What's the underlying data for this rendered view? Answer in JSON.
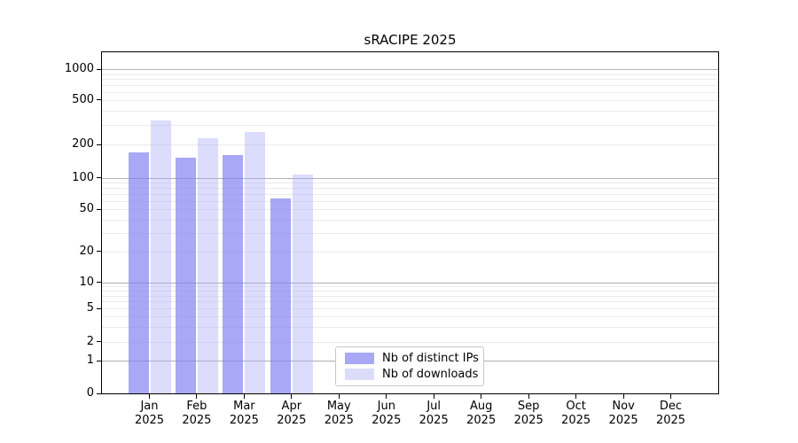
{
  "chart_data": {
    "type": "bar",
    "title": "sRACIPE 2025",
    "categories": [
      "Jan",
      "Feb",
      "Mar",
      "Apr",
      "May",
      "Jun",
      "Jul",
      "Aug",
      "Sep",
      "Oct",
      "Nov",
      "Dec"
    ],
    "category_year": "2025",
    "series": [
      {
        "name": "Nb of distinct IPs",
        "color": "#a8a8f6",
        "fill": "rgba(127,127,242,0.68)",
        "values": [
          170,
          152,
          162,
          63,
          0,
          0,
          0,
          0,
          0,
          0,
          0,
          0
        ]
      },
      {
        "name": "Nb of downloads",
        "color": "#dcdcfa",
        "fill": "rgba(170,170,250,0.41)",
        "values": [
          330,
          228,
          258,
          108,
          0,
          0,
          0,
          0,
          0,
          0,
          0,
          0
        ]
      }
    ],
    "y_axis": {
      "ticks": [
        0,
        1,
        2,
        5,
        10,
        20,
        50,
        100,
        200,
        500,
        1000
      ],
      "scale": "log-like with 0 baseline",
      "scale_anchors": [
        [
          0,
          0
        ],
        [
          1,
          0.095
        ],
        [
          2,
          0.152
        ],
        [
          5,
          0.249
        ],
        [
          10,
          0.326
        ],
        [
          20,
          0.417
        ],
        [
          50,
          0.54
        ],
        [
          100,
          0.632
        ],
        [
          200,
          0.729
        ],
        [
          500,
          0.86
        ],
        [
          1000,
          0.95
        ]
      ],
      "major_gridlines": [
        1,
        10,
        100,
        1000
      ],
      "minor_gridlines": [
        2,
        3,
        4,
        5,
        6,
        7,
        8,
        9,
        20,
        30,
        40,
        50,
        60,
        70,
        80,
        90,
        200,
        300,
        400,
        500,
        600,
        700,
        800,
        900
      ]
    },
    "x_axis": {
      "tick_label_line2": "2025"
    },
    "grid": true,
    "legend_position": "bottom-center-inside",
    "colors": {
      "major_grid": "#b0b0b0",
      "minor_grid": "#ebebeb",
      "axis": "#000000",
      "text": "#000000"
    }
  }
}
